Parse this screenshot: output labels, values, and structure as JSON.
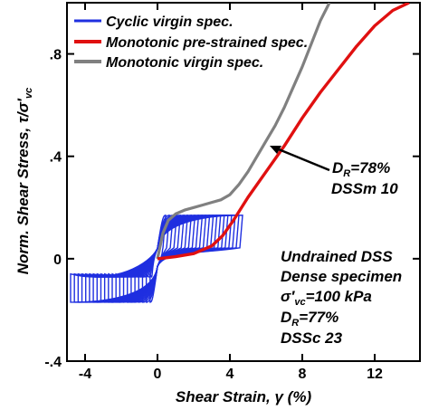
{
  "chart_data": {
    "type": "line",
    "xlabel": "Shear Strain, γ (%)",
    "ylabel": "Norm. Shear Stress, τ/σ′vc",
    "xlim": [
      -5,
      14.5
    ],
    "ylim": [
      -0.4,
      1.0
    ],
    "x_ticks": [
      -4,
      0,
      4,
      8,
      12
    ],
    "y_ticks": [
      -0.4,
      0,
      0.4,
      0.8
    ],
    "grid": false,
    "legend_position": "top-left",
    "series": [
      {
        "name": "Cyclic virgin spec.",
        "color": "#1f2fe0",
        "style": "cyclic-loops",
        "stress_amplitude": 0.17,
        "max_strain_compression": -4.8,
        "max_strain_extension": 4.7
      },
      {
        "name": "Monotonic pre-strained spec.",
        "color": "#e01010",
        "x": [
          0,
          1,
          2,
          3,
          3.6,
          4.2,
          5,
          6,
          7,
          8,
          9,
          10,
          11,
          12,
          13,
          13.9
        ],
        "y": [
          0,
          0.008,
          0.02,
          0.05,
          0.09,
          0.15,
          0.24,
          0.34,
          0.44,
          0.55,
          0.65,
          0.74,
          0.83,
          0.91,
          0.97,
          1.0
        ]
      },
      {
        "name": "Monotonic virgin spec.",
        "color": "#808080",
        "x": [
          0,
          0.3,
          0.6,
          1.0,
          1.5,
          2.0,
          2.5,
          3.0,
          3.5,
          4.0,
          4.5,
          5.0,
          5.5,
          6.0,
          6.5,
          7.0,
          7.5,
          8.0,
          8.5,
          9.0,
          9.5
        ],
        "y": [
          0,
          0.1,
          0.15,
          0.175,
          0.19,
          0.2,
          0.21,
          0.22,
          0.23,
          0.25,
          0.29,
          0.34,
          0.4,
          0.46,
          0.52,
          0.59,
          0.67,
          0.75,
          0.84,
          0.93,
          1.0
        ]
      }
    ],
    "annotations": {
      "monotonic": {
        "dr": "DR=78%",
        "id": "DSSm 10"
      },
      "cyclic": {
        "line1": "Undrained DSS",
        "line2": "Dense specimen",
        "line3": "σ′vc=100 kPa",
        "line4": "DR=77%",
        "line5": "DSSc 23"
      }
    }
  }
}
